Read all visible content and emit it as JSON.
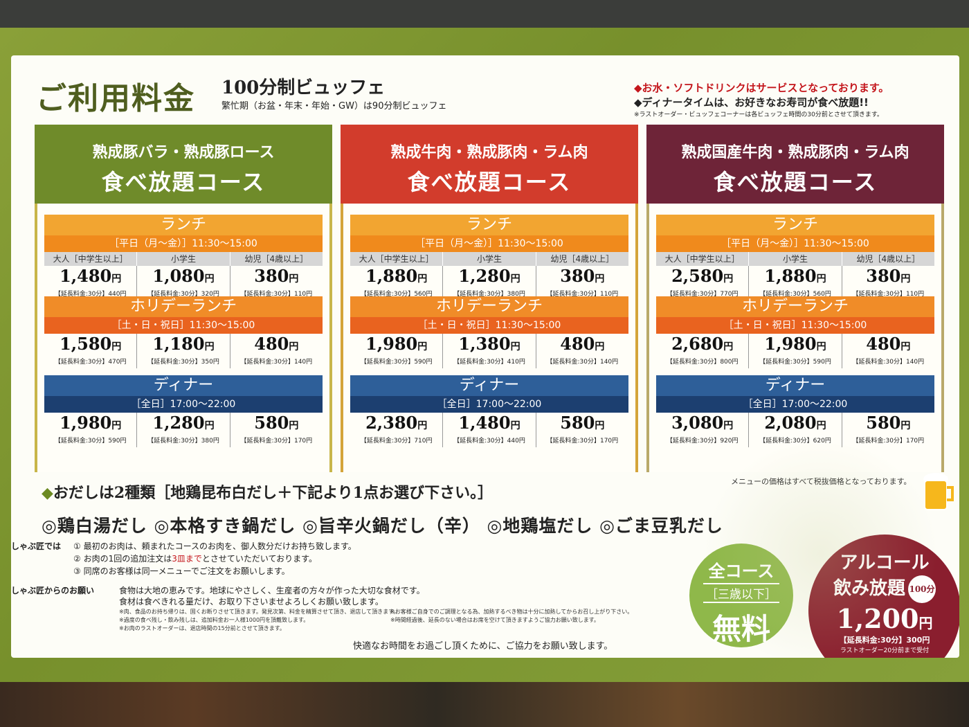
{
  "header": {
    "title": "ご利用料金",
    "subtitle": "100分制ビュッフェ",
    "busy_note": "繁忙期（お盆・年末・年始・GW）は90分制ビュッフェ"
  },
  "top_notes": {
    "line1": "お水・ソフトドリンクはサービスとなっております。",
    "line2": "ディナータイムは、お好きなお寿司が食べ放題!!",
    "line3": "※ラストオーダー・ビュッフェコーナーは各ビュッフェ時間の30分前とさせて頂きます。"
  },
  "colors": {
    "course1": "#6f8b2a",
    "course2": "#d23c2c",
    "course3": "#6e2438",
    "frame1": "#c8b64a",
    "frame2": "#d4a43a",
    "frame3": "#b9a96a"
  },
  "categories": [
    "大人［中学生以上］",
    "小学生",
    "幼児［4歳以上］"
  ],
  "sections": {
    "lunch": {
      "title": "ランチ",
      "time": "［平日（月～金）］11:30～15:00"
    },
    "holiday": {
      "title": "ホリデーランチ",
      "time": "［土・日・祝日］11:30～15:00"
    },
    "dinner": {
      "title": "ディナー",
      "time": "［全日］17:00～22:00"
    }
  },
  "yen": "円",
  "courses": [
    {
      "line1": "熟成豚バラ・熟成豚ロース",
      "line2": "食べ放題コース",
      "lunch": [
        {
          "price": "1,480",
          "ext": "【延長料金:30分】440円"
        },
        {
          "price": "1,080",
          "ext": "【延長料金:30分】320円"
        },
        {
          "price": "380",
          "ext": "【延長料金:30分】110円"
        }
      ],
      "holiday": [
        {
          "price": "1,580",
          "ext": "【延長料金:30分】470円"
        },
        {
          "price": "1,180",
          "ext": "【延長料金:30分】350円"
        },
        {
          "price": "480",
          "ext": "【延長料金:30分】140円"
        }
      ],
      "dinner": [
        {
          "price": "1,980",
          "ext": "【延長料金:30分】590円"
        },
        {
          "price": "1,280",
          "ext": "【延長料金:30分】380円"
        },
        {
          "price": "580",
          "ext": "【延長料金:30分】170円"
        }
      ]
    },
    {
      "line1": "熟成牛肉・熟成豚肉・ラム肉",
      "line2": "食べ放題コース",
      "lunch": [
        {
          "price": "1,880",
          "ext": "【延長料金:30分】560円"
        },
        {
          "price": "1,280",
          "ext": "【延長料金:30分】380円"
        },
        {
          "price": "380",
          "ext": "【延長料金:30分】110円"
        }
      ],
      "holiday": [
        {
          "price": "1,980",
          "ext": "【延長料金:30分】590円"
        },
        {
          "price": "1,380",
          "ext": "【延長料金:30分】410円"
        },
        {
          "price": "480",
          "ext": "【延長料金:30分】140円"
        }
      ],
      "dinner": [
        {
          "price": "2,380",
          "ext": "【延長料金:30分】710円"
        },
        {
          "price": "1,480",
          "ext": "【延長料金:30分】440円"
        },
        {
          "price": "580",
          "ext": "【延長料金:30分】170円"
        }
      ]
    },
    {
      "line1": "熟成国産牛肉・熟成豚肉・ラム肉",
      "line2": "食べ放題コース",
      "lunch": [
        {
          "price": "2,580",
          "ext": "【延長料金:30分】770円"
        },
        {
          "price": "1,880",
          "ext": "【延長料金:30分】560円"
        },
        {
          "price": "380",
          "ext": "【延長料金:30分】110円"
        }
      ],
      "holiday": [
        {
          "price": "2,680",
          "ext": "【延長料金:30分】800円"
        },
        {
          "price": "1,980",
          "ext": "【延長料金:30分】590円"
        },
        {
          "price": "480",
          "ext": "【延長料金:30分】140円"
        }
      ],
      "dinner": [
        {
          "price": "3,080",
          "ext": "【延長料金:30分】920円"
        },
        {
          "price": "2,080",
          "ext": "【延長料金:30分】620円"
        },
        {
          "price": "580",
          "ext": "【延長料金:30分】170円"
        }
      ]
    }
  ],
  "tax_note": "メニューの価格はすべて税抜価格となっております。",
  "dashi": {
    "line1": "おだしは2種類［地鶏昆布白だし＋下記より1点お選び下さい。］",
    "line2": "◎鶏白湯だし ◎本格すき鍋だし ◎旨辛火鍋だし（辛） ◎地鶏塩だし ◎ごま豆乳だし"
  },
  "rules": {
    "label1": "しゃぶ匠では",
    "item1": "最初のお肉は、頼まれたコースのお肉を、御人数分だけお持ち致します。",
    "item2_pre": "お肉の1回の追加注文は",
    "item2_red": "3皿まで",
    "item2_post": "とさせていただいております。",
    "item3": "同席のお客様は同一メニューでご注文をお願いします。",
    "label2": "しゃぶ匠からのお願い",
    "req1": "食物は大地の恵みです。地球にやさしく、生産者の方々が作った大切な食材です。",
    "req2": "食材は食べきれる量だけ、お取り下さいませよろしくお願い致します。",
    "small1": "※肉、食品のお持ち帰りは、固くお断りさせて頂きます。発見次第、料金を精算させて頂き、退店して頂きます。",
    "small2": "※過度の食べ残し・飲み残しは、追加料金お一人様1000円を頂戴致します。",
    "small3": "※お肉のラストオーダーは、退店時間の15分前とさせて頂きます。",
    "small4": "※お客様ご自身でのご調理となる為、加熱するべき物は十分に加熱してからお召し上がり下さい。",
    "small5": "※時間経過後、延長のない場合はお席を空けて頂きますようご協力お願い致します。",
    "thanks": "快適なお時間をお過ごし頂くために、ご協力をお願い致します。"
  },
  "free_badge": {
    "line1": "全コース",
    "line2": "［三歳以下］",
    "line3": "無料"
  },
  "alcohol_badge": {
    "line1": "アルコール",
    "line2": "飲み放題",
    "minutes": "100分",
    "price": "1,200",
    "yen": "円",
    "ext": "【延長料金:30分】300円",
    "last_order": "ラストオーダー20分前まで受付"
  }
}
